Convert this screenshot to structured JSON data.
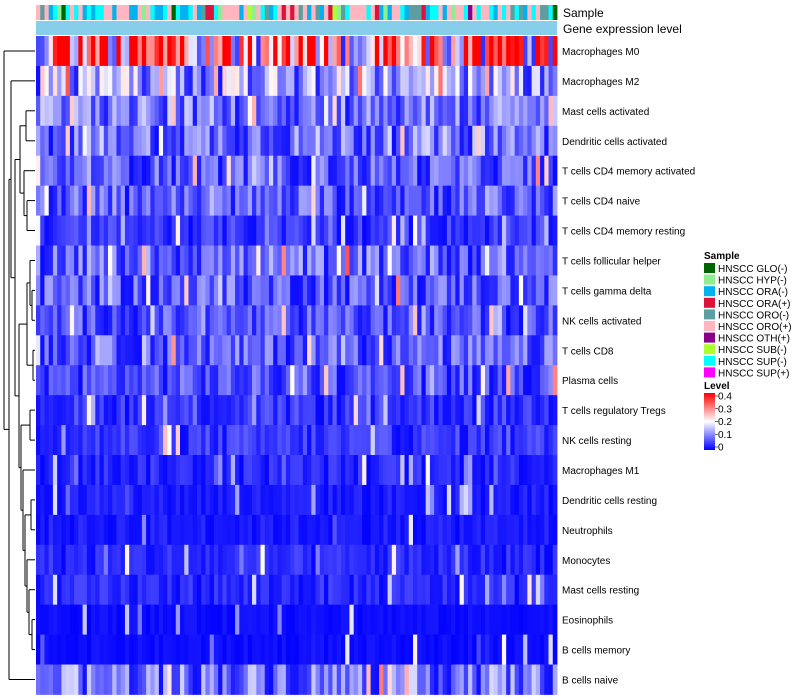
{
  "chart_data": {
    "type": "heatmap",
    "title": "",
    "annotation_rows": [
      "Sample",
      "Gene expression level"
    ],
    "rows": [
      "Macrophages M0",
      "Macrophages M2",
      "Mast cells activated",
      "Dendritic cells activated",
      "T cells CD4 memory activated",
      "T cells CD4 naive",
      "T cells CD4 memory resting",
      "T cells follicular helper",
      "T cells gamma delta",
      "NK cells activated",
      "T cells CD8",
      "Plasma cells",
      "T cells regulatory  Tregs",
      "NK cells resting",
      "Macrophages M1",
      "Dendritic cells resting",
      "Neutrophils",
      "Monocytes",
      "Mast cells resting",
      "Eosinophils",
      "B cells memory",
      "B cells naive"
    ],
    "row_mean_levels": [
      0.3,
      0.12,
      0.09,
      0.09,
      0.07,
      0.07,
      0.04,
      0.08,
      0.07,
      0.06,
      0.07,
      0.06,
      0.04,
      0.04,
      0.03,
      0.02,
      0.02,
      0.03,
      0.03,
      0.01,
      0.01,
      0.09
    ],
    "n_samples": 123,
    "value_range": [
      0,
      0.4
    ],
    "colorscale": {
      "low": "#0000ff",
      "mid": "#ffffff",
      "high": "#ff0000",
      "stops": [
        0,
        0.2,
        0.4
      ]
    },
    "sample_groups": [
      {
        "name": "HNSCC GLO(-)",
        "color": "#006400"
      },
      {
        "name": "HNSCC HYP(-)",
        "color": "#90ee90"
      },
      {
        "name": "HNSCC ORA(-)",
        "color": "#00b2ee"
      },
      {
        "name": "HNSCC ORA(+)",
        "color": "#dc143c"
      },
      {
        "name": "HNSCC ORO(-)",
        "color": "#5f9ea0"
      },
      {
        "name": "HNSCC ORO(+)",
        "color": "#ffb6c1"
      },
      {
        "name": "HNSCC OTH(+)",
        "color": "#8b008b"
      },
      {
        "name": "HNSCC SUB(-)",
        "color": "#adff2f"
      },
      {
        "name": "HNSCC SUP(-)",
        "color": "#00ffff"
      },
      {
        "name": "HNSCC SUP(+)",
        "color": "#ff00ff"
      }
    ],
    "gene_expression_color": "#87ceeb",
    "legend": {
      "sample_title": "Sample",
      "level_title": "Level",
      "level_ticks": [
        "0.4",
        "0.3",
        "0.2",
        "0.1",
        "0"
      ],
      "position": "right"
    },
    "dendrogram": "left"
  }
}
